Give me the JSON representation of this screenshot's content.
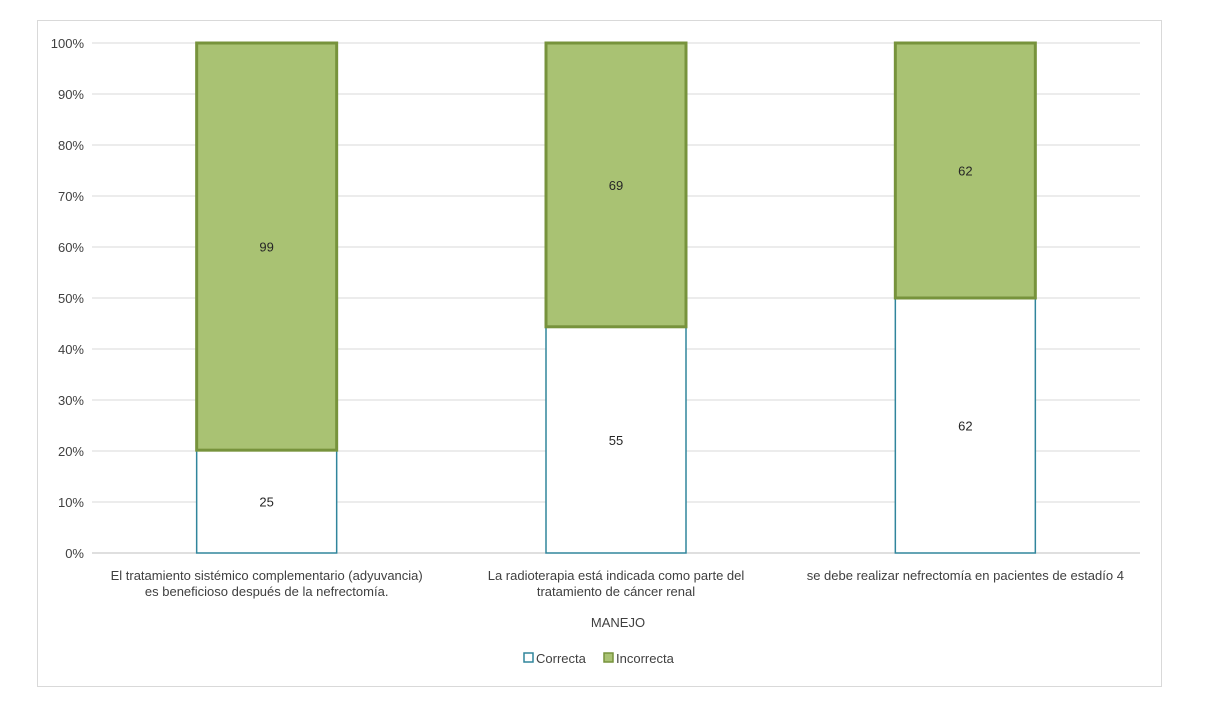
{
  "chart_data": {
    "type": "bar",
    "stacked": "percent",
    "title": "",
    "xlabel": "MANEJO",
    "ylabel": "",
    "ylim": [
      0,
      100
    ],
    "yticks": [
      "0%",
      "10%",
      "20%",
      "30%",
      "40%",
      "50%",
      "60%",
      "70%",
      "80%",
      "90%",
      "100%"
    ],
    "grid": true,
    "legend_position": "bottom",
    "categories": [
      [
        "El tratamiento sistémico complementario (adyuvancia)",
        "es beneficioso después de la nefrectomía."
      ],
      [
        "La radioterapia está indicada como parte del",
        "tratamiento de cáncer renal"
      ],
      [
        "se debe realizar nefrectomía en pacientes de estadío 4"
      ]
    ],
    "series": [
      {
        "name": "Correcta",
        "values": [
          25,
          55,
          62
        ],
        "fill": "#ffffff",
        "stroke": "#31859c"
      },
      {
        "name": "Incorrecta",
        "values": [
          99,
          69,
          62
        ],
        "fill": "#a9c273",
        "stroke": "#77933c"
      }
    ]
  }
}
